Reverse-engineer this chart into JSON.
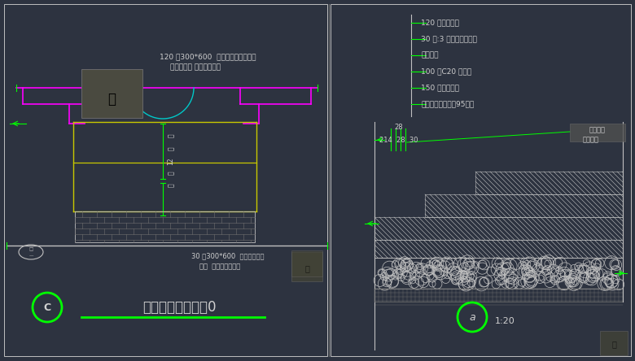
{
  "bg_color": "#2d3340",
  "wh": "#c0c0c0",
  "gr": "#00ff00",
  "mg": "#ff00ff",
  "yw": "#c8c800",
  "cy": "#00c8c8",
  "gy": "#707070",
  "tx": "#d0d0d0",
  "left_title1": "120 厚300*600  福建青花岗石踏步石",
  "left_title2": "踏面为烧面 踢面为自然面",
  "left_label1": "30 厚300*600  芝麻灰荔枝面",
  "left_label2": "缝宽  同色水泥勾缝源",
  "left_vert1": "槽",
  "left_vert2": "宽",
  "left_vert3": "12",
  "left_vert4": "槽",
  "left_vert5": "深",
  "left_bottom_letter": "C",
  "left_bottom_text": "入口台阶标准做法0",
  "right_ann": [
    "120 厚石材踏步",
    "30 厚:3 水泥砂浆粘接层",
    "砖砌台阶",
    "100 厚C20 混凝土",
    "150 厚级配碎石",
    "素土夯实（夯实度95砂斤"
  ],
  "right_dim_top": "28",
  "right_dim_bot": "214  28  30",
  "right_lbl1": "表面拉槽",
  "right_lbl2": "槽宽，深",
  "right_letter": "a",
  "right_scale": "1:20"
}
